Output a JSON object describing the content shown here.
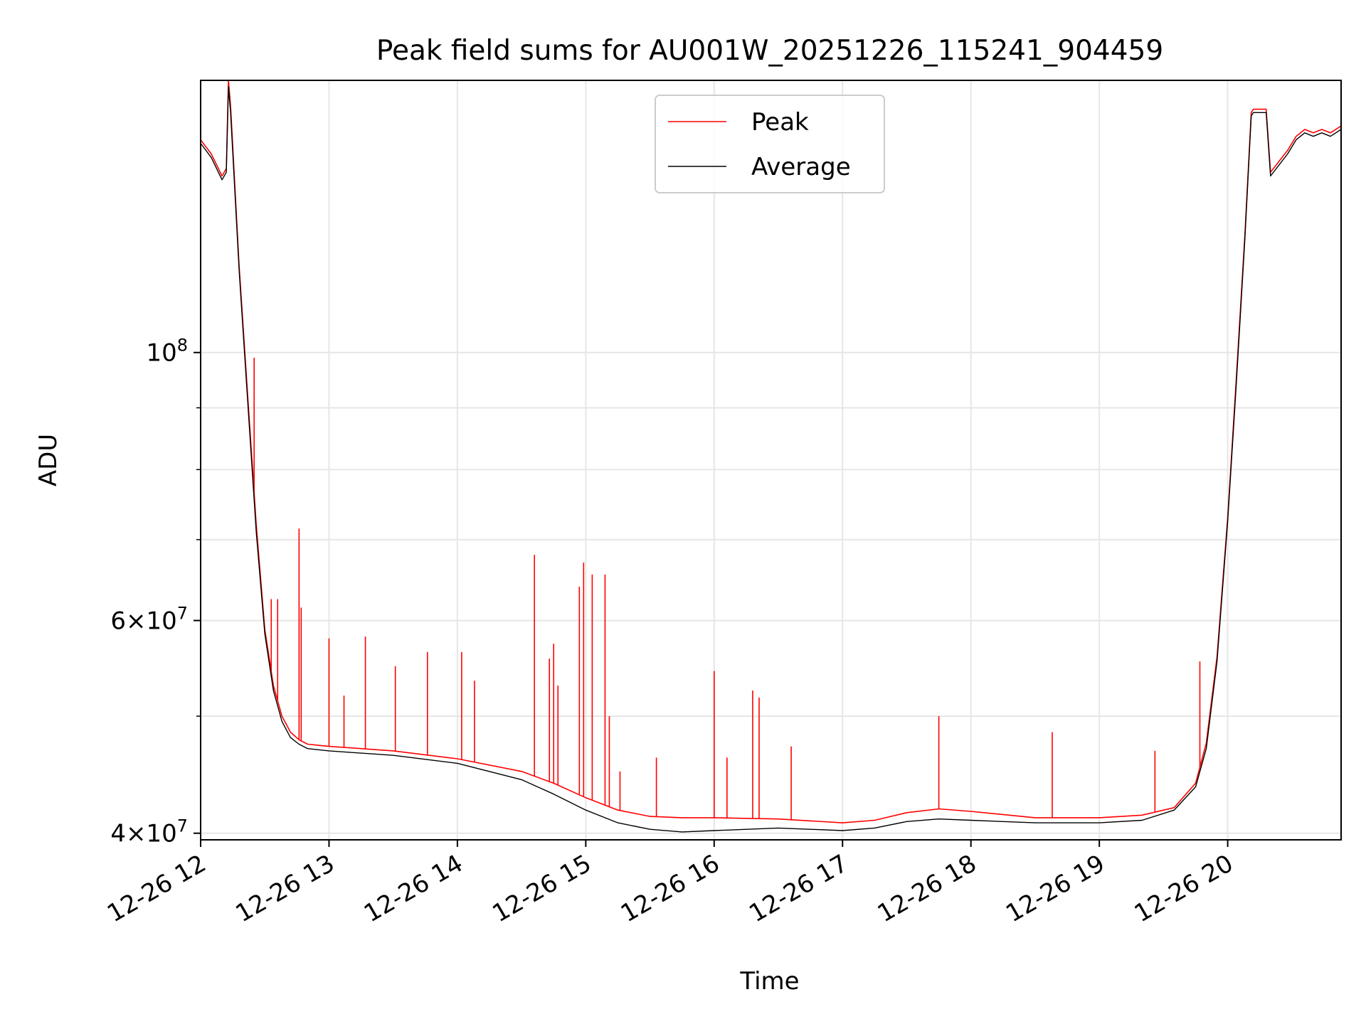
{
  "chart_data": {
    "type": "line",
    "title": "Peak field sums for AU001W_20251226_115241_904459",
    "xlabel": "Time",
    "ylabel": "ADU",
    "x_range": [
      "2025-12-26 12:00",
      "2025-12-26 20:53"
    ],
    "y_scale": "log",
    "y_range": [
      39500000,
      168000000
    ],
    "grid": true,
    "legend": {
      "placement": "top-center"
    },
    "x_ticks": [
      "12-26 12",
      "12-26 13",
      "12-26 14",
      "12-26 15",
      "12-26 16",
      "12-26 17",
      "12-26 18",
      "12-26 19",
      "12-26 20"
    ],
    "y_tick_labels": [
      {
        "value": 100000000,
        "mantissa": "",
        "base": "10",
        "exp": "8"
      },
      {
        "value": 60000000,
        "mantissa": "6×",
        "base": "10",
        "exp": "7"
      },
      {
        "value": 40000000,
        "mantissa": "4×",
        "base": "10",
        "exp": "7"
      }
    ],
    "y_minor_ticks": [
      50000000,
      70000000,
      80000000,
      90000000
    ],
    "series": [
      {
        "name": "Peak",
        "color": "#ff0000",
        "x": [
          "12:00",
          "12:05",
          "12:10",
          "12:12",
          "12:13",
          "12:14",
          "12:18",
          "12:22",
          "12:26",
          "12:30",
          "12:34",
          "12:38",
          "12:42",
          "12:46",
          "12:50",
          "12:55",
          "13:00",
          "13:30",
          "14:00",
          "14:30",
          "14:45",
          "15:00",
          "15:15",
          "15:30",
          "15:45",
          "16:00",
          "16:30",
          "17:00",
          "17:15",
          "17:30",
          "17:45",
          "18:00",
          "18:30",
          "19:00",
          "19:20",
          "19:35",
          "19:45",
          "19:50",
          "19:55",
          "20:00",
          "20:04",
          "20:08",
          "20:11",
          "20:12",
          "20:14",
          "20:18",
          "20:20",
          "20:24",
          "20:28",
          "20:32",
          "20:36",
          "20:40",
          "20:44",
          "20:48",
          "20:53"
        ],
        "y": [
          150000000,
          146000000,
          140000000,
          142000000,
          168000000,
          160000000,
          118000000,
          92000000,
          72000000,
          59000000,
          53000000,
          50000000,
          48500000,
          47800000,
          47400000,
          47300000,
          47200000,
          46800000,
          46100000,
          45000000,
          44000000,
          42800000,
          41800000,
          41300000,
          41200000,
          41200000,
          41100000,
          40800000,
          41000000,
          41600000,
          41900000,
          41700000,
          41200000,
          41200000,
          41400000,
          42000000,
          44000000,
          47500000,
          56000000,
          73000000,
          95000000,
          125000000,
          158000000,
          159000000,
          159000000,
          159000000,
          141000000,
          144000000,
          147000000,
          151000000,
          153000000,
          152000000,
          153000000,
          152000000,
          154000000
        ]
      },
      {
        "name": "Average",
        "color": "#000000",
        "x": [
          "12:00",
          "12:05",
          "12:10",
          "12:12",
          "12:13",
          "12:14",
          "12:18",
          "12:22",
          "12:26",
          "12:30",
          "12:34",
          "12:38",
          "12:42",
          "12:46",
          "12:50",
          "12:55",
          "13:00",
          "13:30",
          "14:00",
          "14:30",
          "14:45",
          "15:00",
          "15:15",
          "15:30",
          "15:45",
          "16:00",
          "16:30",
          "17:00",
          "17:15",
          "17:30",
          "17:45",
          "18:00",
          "18:30",
          "19:00",
          "19:20",
          "19:35",
          "19:45",
          "19:50",
          "19:55",
          "20:00",
          "20:04",
          "20:08",
          "20:11",
          "20:12",
          "20:14",
          "20:18",
          "20:20",
          "20:24",
          "20:28",
          "20:32",
          "20:36",
          "20:40",
          "20:44",
          "20:48",
          "20:53"
        ],
        "y": [
          149000000,
          145000000,
          139000000,
          141000000,
          166000000,
          158000000,
          117000000,
          91000000,
          71000000,
          58500000,
          52500000,
          49500000,
          48000000,
          47400000,
          47000000,
          46900000,
          46800000,
          46400000,
          45700000,
          44300000,
          43100000,
          41800000,
          40800000,
          40300000,
          40100000,
          40200000,
          40400000,
          40200000,
          40400000,
          40900000,
          41100000,
          41000000,
          40800000,
          40800000,
          41000000,
          41800000,
          43700000,
          47000000,
          55500000,
          72500000,
          94000000,
          124000000,
          157000000,
          158000000,
          158000000,
          158000000,
          140000000,
          143000000,
          146000000,
          150000000,
          152000000,
          151000000,
          152000000,
          151000000,
          153000000
        ]
      }
    ],
    "spikes": [
      {
        "x": "12:25",
        "y": 99000000
      },
      {
        "x": "12:33",
        "y": 62500000
      },
      {
        "x": "12:36",
        "y": 62500000
      },
      {
        "x": "12:46",
        "y": 71500000
      },
      {
        "x": "12:47",
        "y": 61500000
      },
      {
        "x": "13:00",
        "y": 58000000
      },
      {
        "x": "13:07",
        "y": 52000000
      },
      {
        "x": "13:17",
        "y": 58200000
      },
      {
        "x": "13:31",
        "y": 55000000
      },
      {
        "x": "13:46",
        "y": 56500000
      },
      {
        "x": "14:02",
        "y": 56500000
      },
      {
        "x": "14:08",
        "y": 53500000
      },
      {
        "x": "14:36",
        "y": 68000000
      },
      {
        "x": "14:43",
        "y": 55800000
      },
      {
        "x": "14:45",
        "y": 57400000
      },
      {
        "x": "14:47",
        "y": 53000000
      },
      {
        "x": "14:57",
        "y": 64000000
      },
      {
        "x": "14:59",
        "y": 67000000
      },
      {
        "x": "15:03",
        "y": 65500000
      },
      {
        "x": "15:09",
        "y": 65500000
      },
      {
        "x": "15:11",
        "y": 50000000
      },
      {
        "x": "15:16",
        "y": 45000000
      },
      {
        "x": "15:33",
        "y": 46200000
      },
      {
        "x": "16:00",
        "y": 54500000
      },
      {
        "x": "16:06",
        "y": 46200000
      },
      {
        "x": "16:18",
        "y": 52500000
      },
      {
        "x": "16:21",
        "y": 51800000
      },
      {
        "x": "16:36",
        "y": 47200000
      },
      {
        "x": "17:45",
        "y": 50000000
      },
      {
        "x": "18:38",
        "y": 48500000
      },
      {
        "x": "19:26",
        "y": 46800000
      },
      {
        "x": "19:47",
        "y": 55500000
      }
    ]
  }
}
